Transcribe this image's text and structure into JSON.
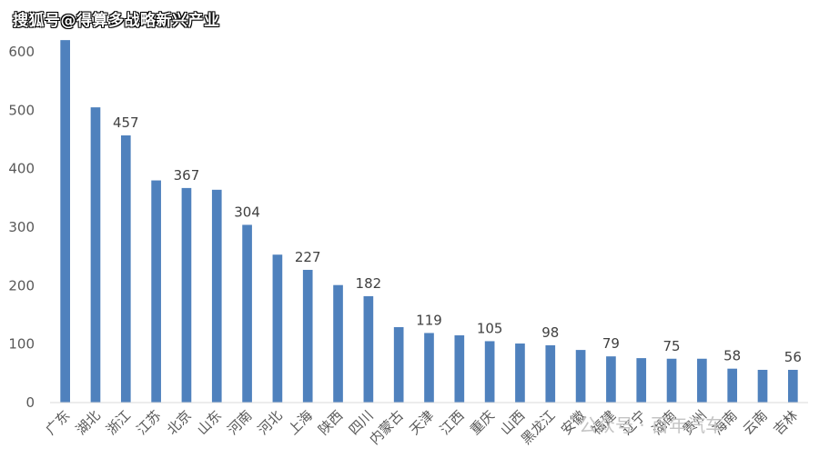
{
  "watermark_top": "搜狐号@得算多战略新兴产业",
  "watermark_bottom": "公众号 · 百年汽车",
  "chart_data": {
    "type": "bar",
    "title": "",
    "xlabel": "",
    "ylabel": "",
    "ylim": [
      0,
      600
    ],
    "yticks": [
      0,
      100,
      200,
      300,
      400,
      500,
      600
    ],
    "grid": false,
    "bar_color": "#4f81bd",
    "categories": [
      "广东",
      "湖北",
      "浙江",
      "江苏",
      "北京",
      "山东",
      "河南",
      "河北",
      "上海",
      "陕西",
      "四川",
      "内蒙古",
      "天津",
      "江西",
      "重庆",
      "山西",
      "黑龙江",
      "安徽",
      "福建",
      "辽宁",
      "湖南",
      "贵州",
      "海南",
      "云南",
      "吉林"
    ],
    "values": [
      620,
      505,
      457,
      380,
      367,
      364,
      304,
      253,
      227,
      201,
      182,
      129,
      119,
      115,
      105,
      101,
      98,
      90,
      79,
      76,
      75,
      75,
      58,
      56,
      56
    ],
    "data_labels": [
      null,
      null,
      "457",
      null,
      "367",
      null,
      "304",
      null,
      "227",
      null,
      "182",
      null,
      "119",
      null,
      "105",
      null,
      "98",
      null,
      "79",
      null,
      "75",
      null,
      "58",
      null,
      "56"
    ]
  }
}
